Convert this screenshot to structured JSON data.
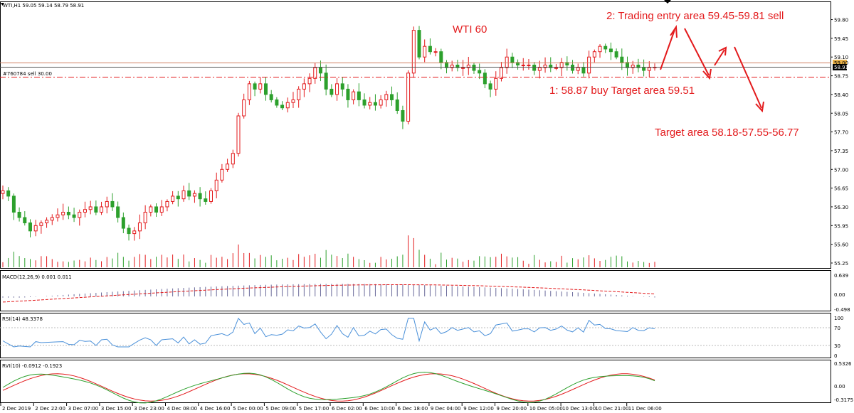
{
  "colors": {
    "up": "#e31a1c",
    "down": "#2ca02c",
    "axis": "#000000",
    "anno": "#e31a1c",
    "rsi": "#4a90d9",
    "grid": "#bdbdbd"
  },
  "chart_data": {
    "type": "candlestick",
    "symbol_header": "WTI,H1  59.05 59.14 58.79 58.91",
    "order_label": "#760784 sell 30.00",
    "annotations": {
      "title": "WTI 60",
      "note2": "2:   Trading entry area 59.45-59.81 sell",
      "note1": "1:  58.87 buy  Target area 59.51",
      "note3": "Target area  58.18-57.55-56.77"
    },
    "price_axis": {
      "ticks": [
        "59.80",
        "59.45",
        "59.10",
        "58.75",
        "58.40",
        "58.05",
        "57.70",
        "57.35",
        "57.00",
        "56.65",
        "56.30",
        "55.95",
        "55.60",
        "55.25"
      ],
      "ylim": [
        55.25,
        59.98
      ],
      "current": "58.91",
      "ask": "59.00"
    },
    "x_labels": [
      "2 Dec 2019",
      "2 Dec 22:00",
      "3 Dec 07:00",
      "3 Dec 15:00",
      "3 Dec 23:00",
      "4 Dec 08:00",
      "4 Dec 16:00",
      "5 Dec 00:00",
      "5 Dec 09:00",
      "5 Dec 17:00",
      "6 Dec 02:00",
      "6 Dec 10:00",
      "6 Dec 18:00",
      "9 Dec 04:00",
      "9 Dec 12:00",
      "9 Dec 20:00",
      "10 Dec 05:00",
      "10 Dec 13:00",
      "10 Dec 21:00",
      "11 Dec 06:00"
    ],
    "closes": [
      56.6,
      56.5,
      56.2,
      56.1,
      56.0,
      55.85,
      55.95,
      56.0,
      56.05,
      56.1,
      56.15,
      56.2,
      56.15,
      56.1,
      56.2,
      56.25,
      56.3,
      56.2,
      56.3,
      56.4,
      56.3,
      56.1,
      55.9,
      55.8,
      55.85,
      56.0,
      56.2,
      56.3,
      56.2,
      56.3,
      56.4,
      56.5,
      56.45,
      56.6,
      56.5,
      56.55,
      56.45,
      56.4,
      56.6,
      56.8,
      57.0,
      57.1,
      57.3,
      58.0,
      58.3,
      58.6,
      58.5,
      58.6,
      58.4,
      58.3,
      58.2,
      58.15,
      58.25,
      58.3,
      58.5,
      58.6,
      58.7,
      58.9,
      58.8,
      58.5,
      58.4,
      58.6,
      58.5,
      58.3,
      58.45,
      58.3,
      58.2,
      58.25,
      58.2,
      58.3,
      58.4,
      58.3,
      58.1,
      57.9,
      58.8,
      59.6,
      59.1,
      59.3,
      59.2,
      59.2,
      59.0,
      58.9,
      58.95,
      58.9,
      58.9,
      58.95,
      58.85,
      58.8,
      58.6,
      58.5,
      58.7,
      58.9,
      59.1,
      59.0,
      58.95,
      58.95,
      58.95,
      58.85,
      58.9,
      58.95,
      58.9,
      58.9,
      59.0,
      58.95,
      58.85,
      58.9,
      58.8,
      59.1,
      59.2,
      59.3,
      59.25,
      59.2,
      59.1,
      59.0,
      58.9,
      58.95,
      58.9,
      58.85,
      58.9,
      58.91
    ],
    "volume_labels": [],
    "macd": {
      "label": "MACD(12,26,9) 0.001 0.011",
      "ticks": [
        "0.639",
        "0.00",
        "-0.498"
      ]
    },
    "rsi": {
      "label": "RSI(14) 48.3378",
      "ticks": [
        "100",
        "70",
        "30",
        "0"
      ]
    },
    "rvi": {
      "label": "RVI(10) -0.0912 -0.1923",
      "ticks": [
        "0.5326",
        "0.00",
        "-0.3175"
      ]
    }
  }
}
